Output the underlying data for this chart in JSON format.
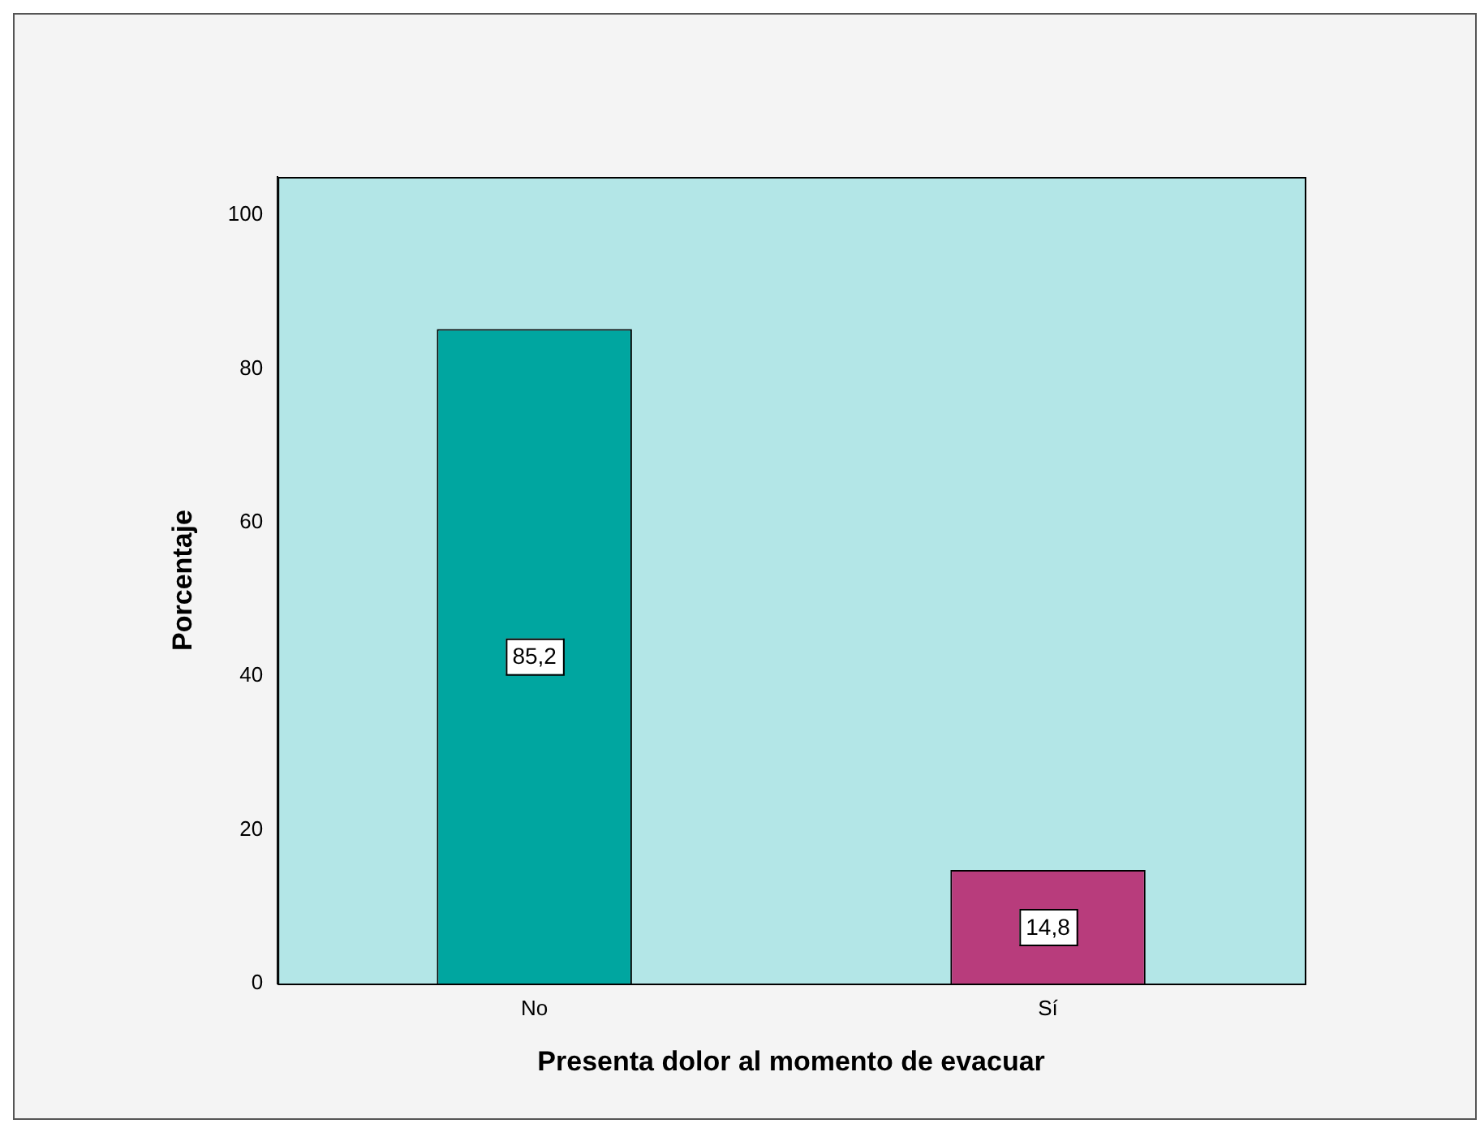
{
  "chart_data": {
    "type": "bar",
    "xlabel": "Presenta dolor al momento de evacuar",
    "ylabel": "Porcentaje",
    "categories": [
      "No",
      "Sí"
    ],
    "values": [
      85.2,
      14.8
    ],
    "colors": [
      "#00a6a0",
      "#b83c7c"
    ],
    "value_labels": [
      "85,2",
      "14,8"
    ],
    "ylim": [
      0,
      105
    ],
    "yticks": [
      0,
      20,
      40,
      60,
      80,
      100
    ],
    "grid": false,
    "legend": false
  }
}
